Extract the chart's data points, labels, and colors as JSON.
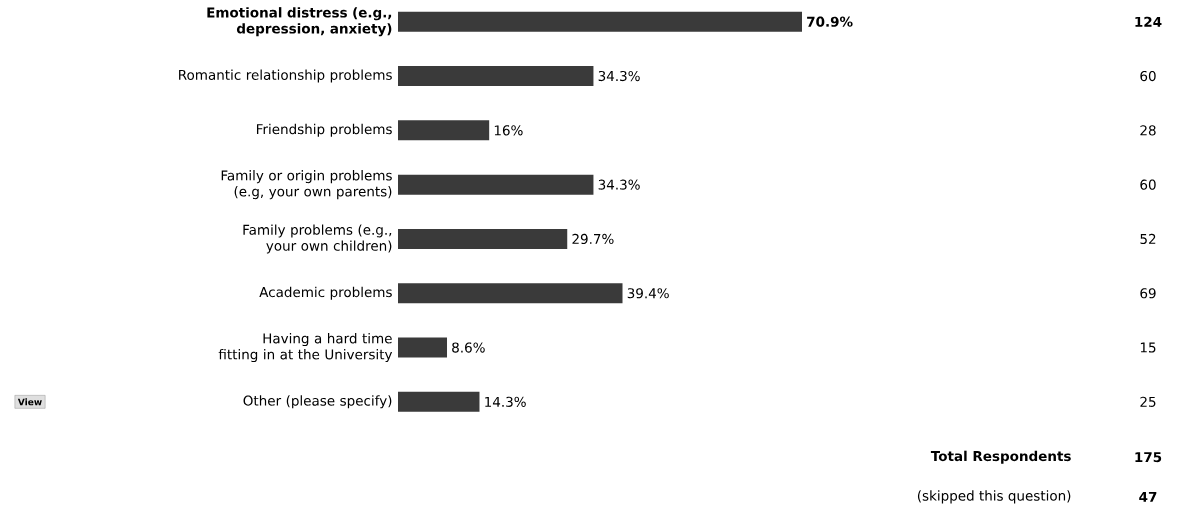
{
  "chart_data": {
    "type": "bar",
    "orientation": "horizontal",
    "categories": [
      "Emotional distress (e.g., depression, anxiety)",
      "Romantic relationship problems",
      "Friendship problems",
      "Family or origin problems (e.g, your own parents)",
      "Family problems (e.g., your own children)",
      "Academic problems",
      "Having a hard time fitting in at the University",
      "Other (please specify)"
    ],
    "values": [
      70.9,
      34.3,
      16,
      34.3,
      29.7,
      39.4,
      8.6,
      14.3
    ],
    "value_labels": [
      "70.9%",
      "34.3%",
      "16%",
      "34.3%",
      "29.7%",
      "39.4%",
      "8.6%",
      "14.3%"
    ],
    "color": "#3a3a3a",
    "annotations": [
      "124",
      "60",
      "28",
      "60",
      "52",
      "69",
      "15",
      "25",
      "View",
      "Total Respondents",
      "175",
      "(skipped this question)",
      "47"
    ]
  }
}
